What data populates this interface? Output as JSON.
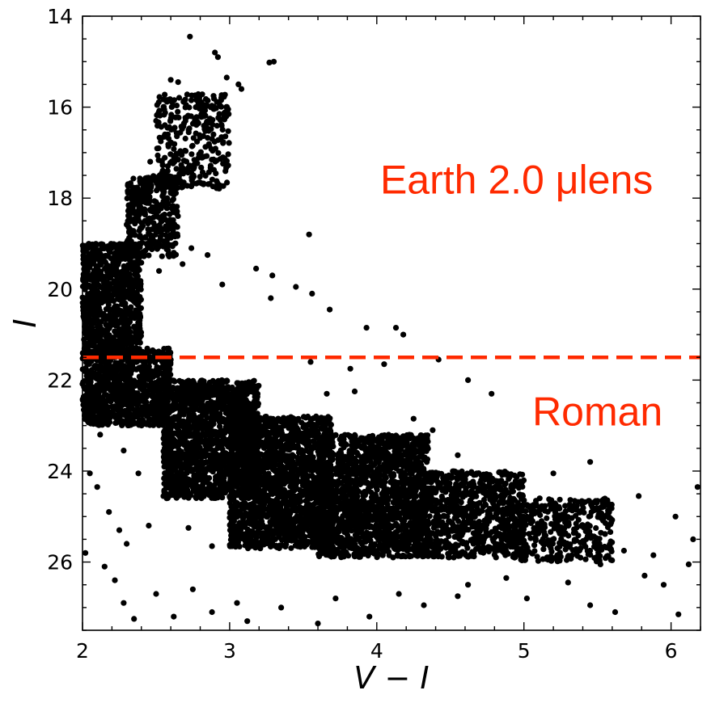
{
  "chart_data": {
    "type": "scatter",
    "xlabel": "V − I",
    "ylabel": "I",
    "xlim": [
      2,
      6.2
    ],
    "ylim": [
      27.5,
      14
    ],
    "y_inverted": true,
    "x_ticks": [
      "2",
      "3",
      "4",
      "5",
      "6"
    ],
    "y_ticks": [
      "14",
      "16",
      "18",
      "20",
      "22",
      "24",
      "26"
    ],
    "x_tick_values": [
      2,
      3,
      4,
      5,
      6
    ],
    "y_tick_values": [
      14,
      16,
      18,
      20,
      22,
      24,
      26
    ],
    "marker_color": "#000000",
    "grid": false,
    "legend": "none",
    "threshold_line": {
      "y": 21.5,
      "style": "dashed",
      "color": "#ff2a00"
    },
    "annotations": [
      {
        "text": "Earth 2.0 μlens",
        "x": 4.95,
        "y": 17.9,
        "color": "#ff2a00"
      },
      {
        "text": "Roman",
        "x": 5.5,
        "y": 23.0,
        "color": "#ff2a00"
      }
    ],
    "points": [
      [
        2.73,
        14.45
      ],
      [
        2.9,
        14.8
      ],
      [
        2.92,
        14.9
      ],
      [
        3.27,
        15.02
      ],
      [
        3.3,
        15.0
      ],
      [
        2.6,
        15.4
      ],
      [
        2.65,
        15.45
      ],
      [
        2.98,
        15.35
      ],
      [
        3.06,
        15.5
      ],
      [
        3.08,
        15.6
      ],
      [
        2.52,
        16.1
      ],
      [
        2.56,
        16.6
      ],
      [
        2.7,
        16.3
      ],
      [
        2.77,
        16.0
      ],
      [
        2.84,
        16.45
      ],
      [
        2.88,
        16.7
      ],
      [
        2.46,
        17.2
      ],
      [
        2.42,
        17.6
      ],
      [
        2.55,
        17.9
      ],
      [
        2.37,
        18.3
      ],
      [
        2.49,
        18.6
      ],
      [
        2.61,
        18.05
      ],
      [
        2.74,
        19.1
      ],
      [
        2.85,
        19.25
      ],
      [
        3.18,
        19.55
      ],
      [
        3.29,
        19.7
      ],
      [
        3.45,
        19.95
      ],
      [
        3.56,
        20.1
      ],
      [
        3.68,
        20.45
      ],
      [
        3.93,
        20.85
      ],
      [
        4.13,
        20.85
      ],
      [
        4.18,
        21.0
      ],
      [
        3.28,
        20.2
      ],
      [
        2.95,
        19.9
      ],
      [
        3.54,
        18.8
      ],
      [
        4.42,
        21.55
      ],
      [
        2.05,
        21.1
      ],
      [
        2.1,
        21.9
      ],
      [
        2.02,
        22.2
      ],
      [
        2.12,
        23.2
      ],
      [
        2.05,
        24.05
      ],
      [
        2.1,
        24.35
      ],
      [
        2.18,
        24.9
      ],
      [
        2.25,
        25.3
      ],
      [
        2.3,
        25.6
      ],
      [
        2.02,
        25.8
      ],
      [
        2.15,
        26.1
      ],
      [
        2.22,
        26.4
      ],
      [
        2.28,
        26.9
      ],
      [
        2.35,
        27.25
      ],
      [
        2.45,
        25.2
      ],
      [
        2.5,
        26.7
      ],
      [
        2.62,
        27.2
      ],
      [
        2.75,
        26.6
      ],
      [
        2.88,
        27.1
      ],
      [
        3.05,
        26.9
      ],
      [
        3.12,
        27.3
      ],
      [
        3.35,
        27.0
      ],
      [
        3.6,
        27.35
      ],
      [
        3.72,
        26.8
      ],
      [
        3.95,
        27.2
      ],
      [
        4.15,
        26.7
      ],
      [
        4.32,
        26.95
      ],
      [
        4.55,
        26.75
      ],
      [
        4.62,
        26.5
      ],
      [
        4.88,
        26.35
      ],
      [
        5.02,
        26.8
      ],
      [
        5.3,
        26.45
      ],
      [
        5.45,
        26.95
      ],
      [
        5.62,
        27.1
      ],
      [
        5.95,
        26.5
      ],
      [
        6.05,
        27.15
      ],
      [
        6.12,
        26.05
      ],
      [
        6.15,
        25.5
      ],
      [
        6.03,
        25.0
      ],
      [
        6.18,
        24.35
      ],
      [
        5.78,
        24.55
      ],
      [
        5.45,
        23.8
      ],
      [
        5.2,
        24.05
      ],
      [
        5.35,
        25.35
      ],
      [
        5.68,
        25.75
      ],
      [
        5.88,
        25.85
      ],
      [
        5.52,
        26.05
      ],
      [
        5.82,
        26.3
      ],
      [
        4.78,
        22.3
      ],
      [
        4.62,
        22.0
      ],
      [
        4.55,
        23.65
      ],
      [
        4.98,
        24.3
      ],
      [
        5.12,
        25.1
      ],
      [
        4.88,
        25.65
      ],
      [
        3.55,
        21.6
      ],
      [
        3.82,
        21.75
      ],
      [
        4.05,
        21.65
      ],
      [
        2.62,
        19.2
      ],
      [
        2.68,
        19.45
      ],
      [
        2.52,
        19.6
      ],
      [
        4.25,
        22.85
      ],
      [
        4.38,
        23.1
      ],
      [
        4.45,
        24.15
      ],
      [
        3.85,
        22.25
      ],
      [
        3.66,
        22.3
      ],
      [
        2.88,
        25.65
      ],
      [
        2.72,
        25.25
      ],
      [
        2.55,
        24.55
      ],
      [
        2.38,
        24.05
      ],
      [
        2.28,
        23.55
      ]
    ],
    "dense_regions": [
      {
        "x": [
          2.0,
          2.4
        ],
        "y": [
          19.0,
          21.5
        ],
        "density": 1.0
      },
      {
        "x": [
          2.0,
          2.6
        ],
        "y": [
          21.3,
          23.0
        ],
        "density": 1.0
      },
      {
        "x": [
          2.55,
          3.2
        ],
        "y": [
          22.0,
          24.6
        ],
        "density": 1.0
      },
      {
        "x": [
          3.0,
          3.7
        ],
        "y": [
          22.8,
          25.7
        ],
        "density": 1.0
      },
      {
        "x": [
          3.6,
          4.35
        ],
        "y": [
          23.2,
          25.9
        ],
        "density": 0.9
      },
      {
        "x": [
          4.25,
          5.0
        ],
        "y": [
          24.0,
          25.9
        ],
        "density": 0.7
      },
      {
        "x": [
          4.9,
          5.6
        ],
        "y": [
          24.6,
          26.0
        ],
        "density": 0.45
      },
      {
        "x": [
          2.5,
          3.0
        ],
        "y": [
          15.7,
          17.8
        ],
        "density": 0.35
      },
      {
        "x": [
          2.3,
          2.65
        ],
        "y": [
          17.5,
          19.3
        ],
        "density": 0.6
      }
    ]
  }
}
